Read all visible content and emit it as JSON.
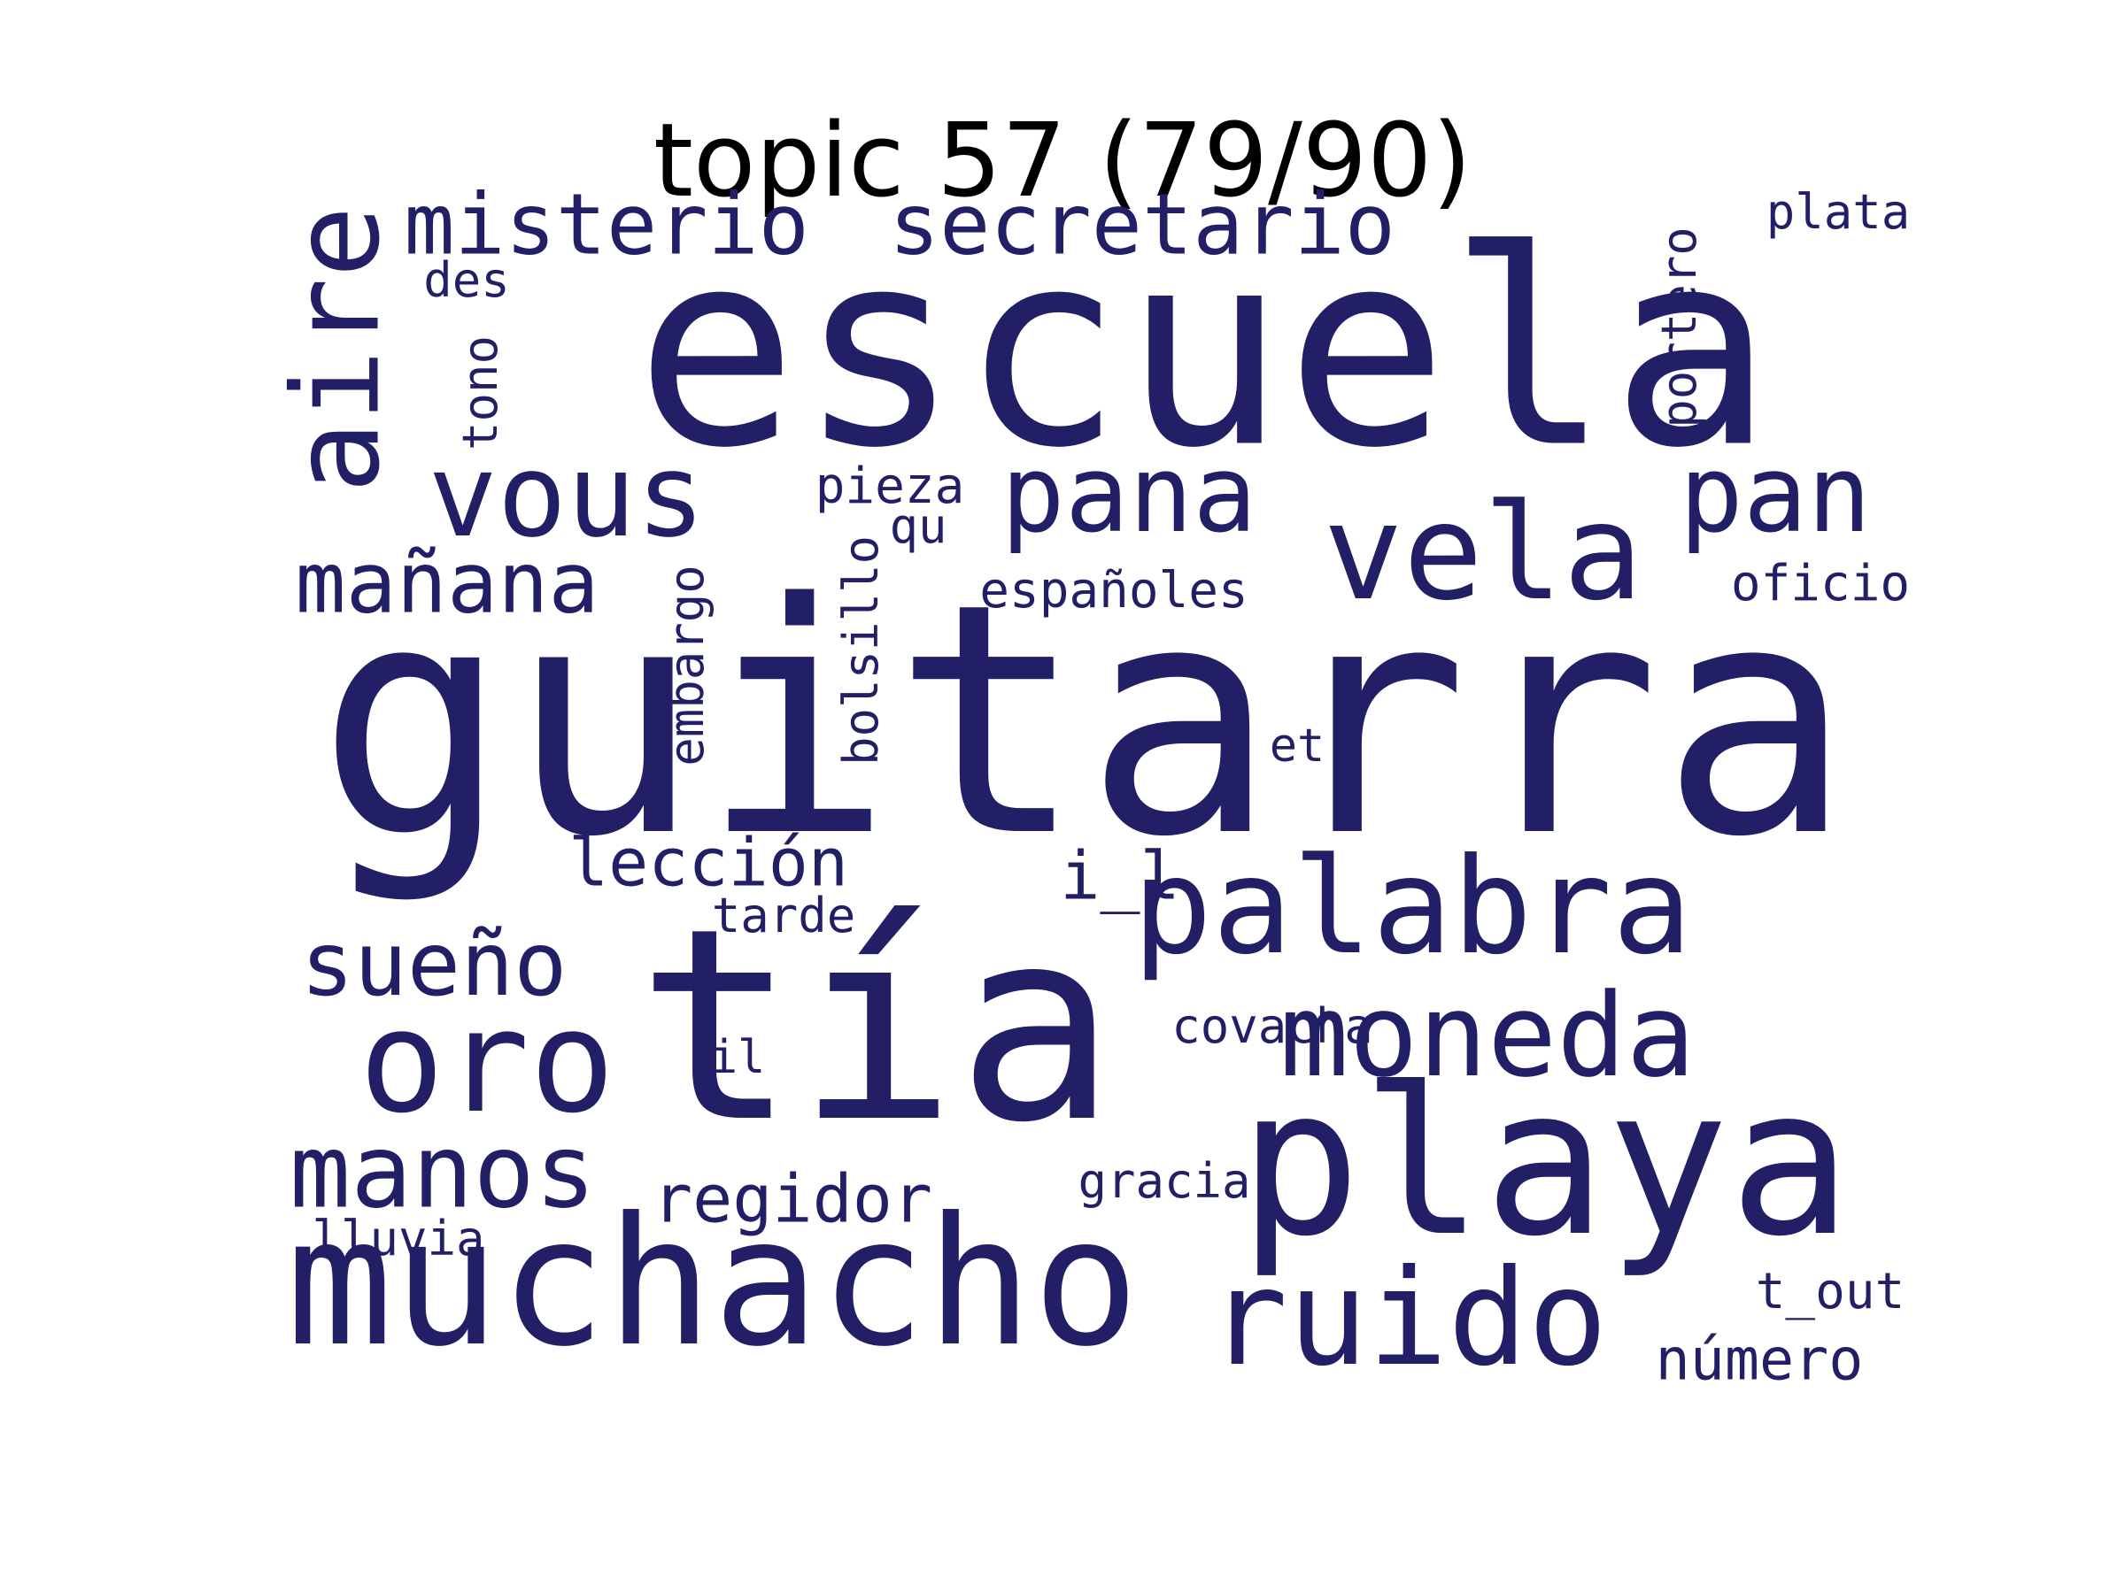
{
  "title": "topic 57 (79/90)",
  "word_color": "#221f66",
  "background_color": "#ffffff",
  "words": [
    {
      "text": "guitarra",
      "orientation": "horizontal"
    },
    {
      "text": "escuela",
      "orientation": "horizontal"
    },
    {
      "text": "tía",
      "orientation": "horizontal"
    },
    {
      "text": "playa",
      "orientation": "horizontal"
    },
    {
      "text": "muchacho",
      "orientation": "horizontal"
    },
    {
      "text": "palabra",
      "orientation": "horizontal"
    },
    {
      "text": "ruido",
      "orientation": "horizontal"
    },
    {
      "text": "oro",
      "orientation": "horizontal"
    },
    {
      "text": "moneda",
      "orientation": "horizontal"
    },
    {
      "text": "vela",
      "orientation": "horizontal"
    },
    {
      "text": "vous",
      "orientation": "horizontal"
    },
    {
      "text": "pan",
      "orientation": "horizontal"
    },
    {
      "text": "pana",
      "orientation": "horizontal"
    },
    {
      "text": "manos",
      "orientation": "horizontal"
    },
    {
      "text": "aire",
      "orientation": "vertical"
    },
    {
      "text": "secretario",
      "orientation": "horizontal"
    },
    {
      "text": "misterio",
      "orientation": "horizontal"
    },
    {
      "text": "sueño",
      "orientation": "horizontal"
    },
    {
      "text": "mañana",
      "orientation": "horizontal"
    },
    {
      "text": "regidor",
      "orientation": "horizontal"
    },
    {
      "text": "lección",
      "orientation": "horizontal"
    },
    {
      "text": "número",
      "orientation": "horizontal"
    },
    {
      "text": "i_l",
      "orientation": "horizontal"
    },
    {
      "text": "españoles",
      "orientation": "horizontal"
    },
    {
      "text": "oficio",
      "orientation": "horizontal"
    },
    {
      "text": "covacha",
      "orientation": "horizontal"
    },
    {
      "text": "gracia",
      "orientation": "horizontal"
    },
    {
      "text": "t_out",
      "orientation": "horizontal"
    },
    {
      "text": "plata",
      "orientation": "horizontal"
    },
    {
      "text": "portero",
      "orientation": "vertical"
    },
    {
      "text": "pieza",
      "orientation": "horizontal"
    },
    {
      "text": "tarde",
      "orientation": "horizontal"
    },
    {
      "text": "bolsillo",
      "orientation": "vertical"
    },
    {
      "text": "embargo",
      "orientation": "vertical"
    },
    {
      "text": "lluvia",
      "orientation": "horizontal"
    },
    {
      "text": "tono",
      "orientation": "vertical"
    },
    {
      "text": "des",
      "orientation": "horizontal"
    },
    {
      "text": "qu",
      "orientation": "horizontal"
    },
    {
      "text": "et",
      "orientation": "horizontal"
    },
    {
      "text": "il",
      "orientation": "horizontal"
    }
  ]
}
